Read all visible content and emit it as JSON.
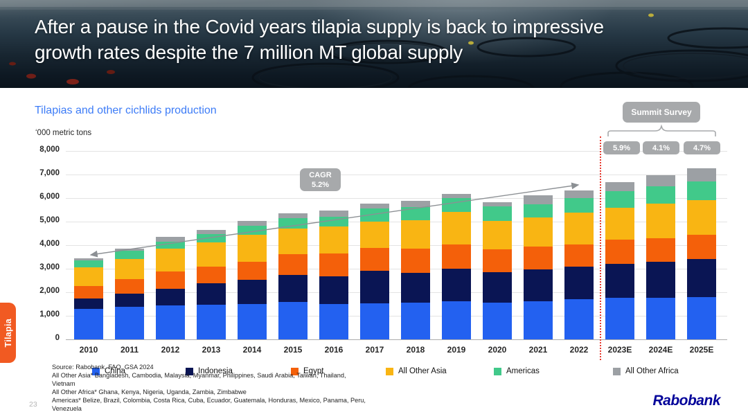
{
  "slide": {
    "title_line1": "After a pause in the Covid years tilapia supply is back to impressive",
    "title_line2": "growth rates despite the 7 million MT global supply",
    "side_tab_label": "Tilapia",
    "page_number": "23",
    "logo_text": "Rabobank"
  },
  "chart_data": {
    "type": "bar",
    "stacked": true,
    "title": "Tilapias and other cichlids production",
    "ylabel": "‘000 metric tons",
    "xlabel": "",
    "ylim": [
      0,
      8000
    ],
    "grid": true,
    "legend_position": "bottom",
    "y_ticks": [
      "8,000",
      "7,000",
      "6,000",
      "5,000",
      "4,000",
      "3,000",
      "2,000",
      "1,000",
      "0"
    ],
    "categories": [
      "2010",
      "2011",
      "2012",
      "2013",
      "2014",
      "2015",
      "2016",
      "2017",
      "2018",
      "2019",
      "2020",
      "2021",
      "2022",
      "2023E",
      "2024E",
      "2025E"
    ],
    "estimate_categories": [
      "2023E",
      "2024E",
      "2025E"
    ],
    "series": [
      {
        "name": "China",
        "color": "#2361F0",
        "values": [
          1300,
          1380,
          1430,
          1460,
          1510,
          1590,
          1490,
          1540,
          1560,
          1610,
          1560,
          1610,
          1710,
          1760,
          1780,
          1810
        ]
      },
      {
        "name": "Indonesia",
        "color": "#0A1554",
        "values": [
          450,
          570,
          710,
          930,
          1030,
          1150,
          1200,
          1370,
          1280,
          1400,
          1310,
          1370,
          1370,
          1450,
          1520,
          1590
        ]
      },
      {
        "name": "Egypt",
        "color": "#F4600A",
        "values": [
          530,
          620,
          760,
          690,
          750,
          880,
          950,
          970,
          1030,
          1020,
          950,
          950,
          950,
          1020,
          1010,
          1050
        ]
      },
      {
        "name": "All Other Asia",
        "color": "#F9B513",
        "values": [
          770,
          830,
          970,
          1030,
          1160,
          1080,
          1160,
          1110,
          1200,
          1370,
          1200,
          1260,
          1340,
          1370,
          1450,
          1470
        ]
      },
      {
        "name": "Americas",
        "color": "#41C98A",
        "values": [
          300,
          360,
          280,
          370,
          390,
          460,
          410,
          560,
          560,
          590,
          620,
          560,
          620,
          690,
          730,
          780
        ]
      },
      {
        "name": "All Other Africa",
        "color": "#9CA0A4",
        "values": [
          80,
          90,
          200,
          170,
          200,
          210,
          260,
          220,
          250,
          200,
          190,
          370,
          330,
          390,
          470,
          560
        ]
      }
    ],
    "annotations": {
      "cagr_label": "CAGR",
      "cagr_value": "5.2%",
      "summit_survey_label": "Summit Survey",
      "survey_growth_values": [
        "5.9%",
        "4.1%",
        "4.7%"
      ]
    }
  },
  "footer": {
    "source_lines": [
      "Source: Rabobank, FAO, GSA 2024",
      "All Other Asia* Bangladesh, Cambodia, Malaysia, Myanmar, Philippines, Saudi Arabia, Taiwan, Thailand,",
      "Vietnam",
      "All Other Africa* Ghana, Kenya, Nigeria, Uganda, Zambia, Zimbabwe",
      "Americas* Belize, Brazil, Colombia, Costa Rica, Cuba, Ecuador, Guatemala, Honduras, Mexico, Panama, Peru,",
      "Venezuela"
    ]
  }
}
